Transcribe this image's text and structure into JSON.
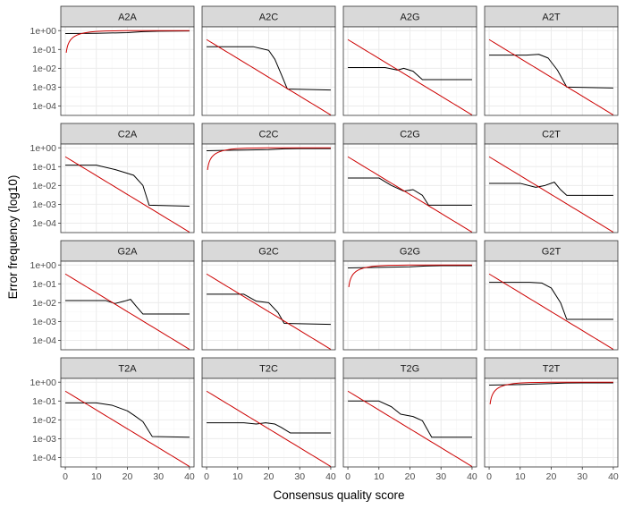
{
  "chart_data": {
    "type": "line",
    "layout": "facet-grid-4x4",
    "xlabel": "Consensus quality score",
    "ylabel": "Error frequency (log10)",
    "xlim": [
      0,
      40
    ],
    "ylim_log10": [
      -4.5,
      0.2
    ],
    "y_scale": "log10",
    "x_ticks": [
      0,
      10,
      20,
      30,
      40
    ],
    "y_ticks": [
      {
        "value": 1,
        "label": "1e+00"
      },
      {
        "value": 0.1,
        "label": "1e-01"
      },
      {
        "value": 0.01,
        "label": "1e-02"
      },
      {
        "value": 0.001,
        "label": "1e-03"
      },
      {
        "value": 0.0001,
        "label": "1e-04"
      }
    ],
    "grid": true,
    "colors": {
      "fitted": "#000000",
      "nominal": "#cc0000",
      "strip_bg": "#d9d9d9",
      "grid_major": "#ebebeb",
      "grid_minor": "#f5f5f5"
    },
    "panels": [
      {
        "label": "A2A",
        "fitted": [
          [
            0,
            0.7
          ],
          [
            10,
            0.72
          ],
          [
            20,
            0.78
          ],
          [
            25,
            0.88
          ],
          [
            30,
            0.93
          ],
          [
            40,
            0.95
          ]
        ],
        "nominal": "diagonal"
      },
      {
        "label": "A2C",
        "fitted": [
          [
            0,
            0.14
          ],
          [
            15,
            0.14
          ],
          [
            20,
            0.09
          ],
          [
            22,
            0.03
          ],
          [
            24,
            0.005
          ],
          [
            26,
            0.0008
          ],
          [
            40,
            0.0007
          ]
        ],
        "nominal": "off-diagonal"
      },
      {
        "label": "A2G",
        "fitted": [
          [
            0,
            0.011
          ],
          [
            12,
            0.011
          ],
          [
            16,
            0.008
          ],
          [
            18,
            0.01
          ],
          [
            21,
            0.007
          ],
          [
            24,
            0.0025
          ],
          [
            40,
            0.0025
          ]
        ],
        "nominal": "off-diagonal"
      },
      {
        "label": "A2T",
        "fitted": [
          [
            0,
            0.05
          ],
          [
            12,
            0.05
          ],
          [
            16,
            0.055
          ],
          [
            19,
            0.035
          ],
          [
            22,
            0.008
          ],
          [
            25,
            0.001
          ],
          [
            40,
            0.0009
          ]
        ],
        "nominal": "off-diagonal"
      },
      {
        "label": "C2A",
        "fitted": [
          [
            0,
            0.12
          ],
          [
            10,
            0.12
          ],
          [
            16,
            0.07
          ],
          [
            22,
            0.035
          ],
          [
            25,
            0.01
          ],
          [
            27,
            0.0009
          ],
          [
            40,
            0.0008
          ]
        ],
        "nominal": "off-diagonal"
      },
      {
        "label": "C2C",
        "fitted": [
          [
            0,
            0.7
          ],
          [
            10,
            0.75
          ],
          [
            20,
            0.8
          ],
          [
            25,
            0.88
          ],
          [
            30,
            0.9
          ],
          [
            40,
            0.9
          ]
        ],
        "nominal": "diagonal"
      },
      {
        "label": "C2G",
        "fitted": [
          [
            0,
            0.025
          ],
          [
            10,
            0.025
          ],
          [
            14,
            0.01
          ],
          [
            18,
            0.005
          ],
          [
            21,
            0.006
          ],
          [
            24,
            0.003
          ],
          [
            26,
            0.0009
          ],
          [
            40,
            0.0009
          ]
        ],
        "nominal": "off-diagonal"
      },
      {
        "label": "C2T",
        "fitted": [
          [
            0,
            0.013
          ],
          [
            10,
            0.013
          ],
          [
            15,
            0.008
          ],
          [
            18,
            0.01
          ],
          [
            21,
            0.015
          ],
          [
            23,
            0.006
          ],
          [
            25,
            0.003
          ],
          [
            40,
            0.003
          ]
        ],
        "nominal": "off-diagonal"
      },
      {
        "label": "G2A",
        "fitted": [
          [
            0,
            0.013
          ],
          [
            13,
            0.013
          ],
          [
            16,
            0.009
          ],
          [
            19,
            0.012
          ],
          [
            21,
            0.015
          ],
          [
            23,
            0.006
          ],
          [
            25,
            0.0025
          ],
          [
            40,
            0.0025
          ]
        ],
        "nominal": "off-diagonal"
      },
      {
        "label": "G2C",
        "fitted": [
          [
            0,
            0.028
          ],
          [
            12,
            0.028
          ],
          [
            16,
            0.012
          ],
          [
            20,
            0.01
          ],
          [
            23,
            0.003
          ],
          [
            25,
            0.0008
          ],
          [
            40,
            0.0007
          ]
        ],
        "nominal": "off-diagonal"
      },
      {
        "label": "G2G",
        "fitted": [
          [
            0,
            0.7
          ],
          [
            10,
            0.75
          ],
          [
            20,
            0.8
          ],
          [
            25,
            0.88
          ],
          [
            30,
            0.92
          ],
          [
            40,
            0.92
          ]
        ],
        "nominal": "diagonal"
      },
      {
        "label": "G2T",
        "fitted": [
          [
            0,
            0.12
          ],
          [
            13,
            0.12
          ],
          [
            17,
            0.11
          ],
          [
            20,
            0.06
          ],
          [
            23,
            0.01
          ],
          [
            25,
            0.0013
          ],
          [
            40,
            0.0013
          ]
        ],
        "nominal": "off-diagonal"
      },
      {
        "label": "T2A",
        "fitted": [
          [
            0,
            0.08
          ],
          [
            10,
            0.08
          ],
          [
            15,
            0.06
          ],
          [
            20,
            0.03
          ],
          [
            22,
            0.018
          ],
          [
            25,
            0.008
          ],
          [
            28,
            0.0013
          ],
          [
            40,
            0.0012
          ]
        ],
        "nominal": "off-diagonal"
      },
      {
        "label": "T2C",
        "fitted": [
          [
            0,
            0.007
          ],
          [
            12,
            0.007
          ],
          [
            16,
            0.006
          ],
          [
            19,
            0.007
          ],
          [
            22,
            0.006
          ],
          [
            24,
            0.004
          ],
          [
            27,
            0.002
          ],
          [
            40,
            0.002
          ]
        ],
        "nominal": "off-diagonal"
      },
      {
        "label": "T2G",
        "fitted": [
          [
            0,
            0.1
          ],
          [
            10,
            0.1
          ],
          [
            14,
            0.05
          ],
          [
            17,
            0.02
          ],
          [
            21,
            0.015
          ],
          [
            24,
            0.009
          ],
          [
            27,
            0.0012
          ],
          [
            40,
            0.0012
          ]
        ],
        "nominal": "off-diagonal"
      },
      {
        "label": "T2T",
        "fitted": [
          [
            0,
            0.7
          ],
          [
            10,
            0.75
          ],
          [
            20,
            0.85
          ],
          [
            25,
            0.9
          ],
          [
            30,
            0.92
          ],
          [
            40,
            0.92
          ]
        ],
        "nominal": "diagonal"
      }
    ]
  }
}
